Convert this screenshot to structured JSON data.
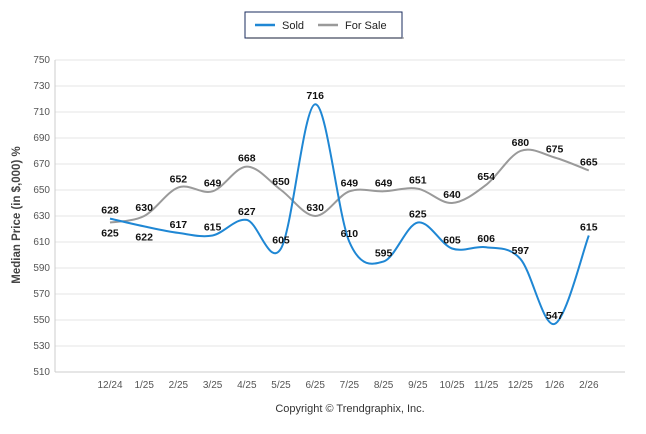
{
  "chart_data": {
    "type": "line",
    "title": "",
    "xlabel": "",
    "ylabel": "Median Price (in $,000) %",
    "ylim": [
      510,
      750
    ],
    "yticks": [
      510,
      530,
      550,
      570,
      590,
      610,
      630,
      650,
      670,
      690,
      710,
      730,
      750
    ],
    "categories": [
      "12/24",
      "1/25",
      "2/25",
      "3/25",
      "4/25",
      "5/25",
      "6/25",
      "7/25",
      "8/25",
      "9/25",
      "10/25",
      "11/25",
      "12/25",
      "1/26",
      "2/26"
    ],
    "series": [
      {
        "name": "Sold",
        "color": "#1f87d4",
        "values": [
          628,
          622,
          617,
          615,
          627,
          605,
          716,
          610,
          595,
          625,
          605,
          606,
          597,
          547,
          615
        ]
      },
      {
        "name": "For Sale",
        "color": "#9a9a9a",
        "values": [
          625,
          630,
          652,
          649,
          668,
          650,
          630,
          649,
          649,
          651,
          640,
          654,
          680,
          675,
          665
        ]
      }
    ],
    "legend": "top-center",
    "grid": true,
    "footer": "Copyright © Trendgraphix, Inc."
  }
}
